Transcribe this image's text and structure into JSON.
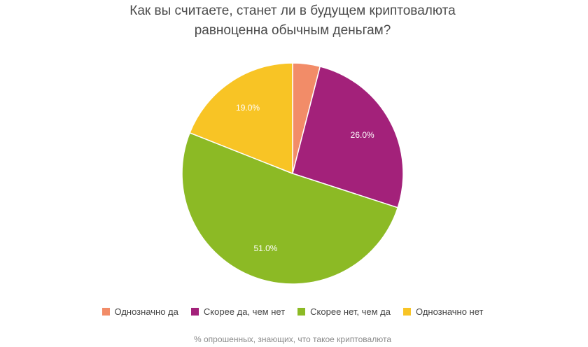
{
  "chart_data": {
    "type": "pie",
    "title_lines": [
      "Как вы считаете, станет ли в будущем криптовалюта",
      "равноценна обычным деньгам?"
    ],
    "slices": [
      {
        "label": "Однозначно да",
        "value": 4.0,
        "color": "#f28c68",
        "value_label": ""
      },
      {
        "label": "Скорее да, чем нет",
        "value": 26.0,
        "color": "#a3217a",
        "value_label": "26.0%"
      },
      {
        "label": "Скорее нет, чем да",
        "value": 51.0,
        "color": "#8cba25",
        "value_label": "51.0%"
      },
      {
        "label": "Однозначно нет",
        "value": 19.0,
        "color": "#f8c425",
        "value_label": "19.0%"
      }
    ],
    "start_angle_deg": 0,
    "direction": "clockwise",
    "legend_position": "bottom",
    "caption": "% опрошенных, знающих, что такое криптовалюта"
  }
}
